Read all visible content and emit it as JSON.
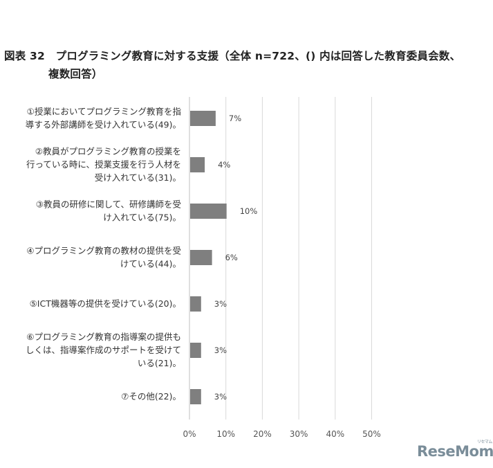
{
  "title_line1": "図表 32　プログラミング教育に対する支援（全体 n=722、() 内は回答した教育委員会数、",
  "title_line2": "複数回答）",
  "logo": {
    "text": "ReseMom",
    "kana": "リセマム"
  },
  "chart_data": {
    "type": "bar",
    "orientation": "horizontal",
    "categories": [
      [
        "①授業においてプログラミング教育を指",
        "導する外部講師を受け入れている(49)。"
      ],
      [
        "②教員がプログラミング教育の授業を",
        "行っている時に、授業支援を行う人材を",
        "受け入れている(31)。"
      ],
      [
        "③教員の研修に関して、研修講師を受",
        "け入れている(75)。"
      ],
      [
        "④プログラミング教育の教材の提供を受",
        "けている(44)。"
      ],
      [
        "⑤ICT機器等の提供を受けている(20)。"
      ],
      [
        "⑥プログラミング教育の指導案の提供も",
        "しくは、指導案作成のサポートを受けて",
        "いる(21)。"
      ],
      [
        "⑦その他(22)。"
      ]
    ],
    "values": [
      7,
      4,
      10,
      6,
      3,
      3,
      3
    ],
    "value_labels": [
      "7%",
      "4%",
      "10%",
      "6%",
      "3%",
      "3%",
      "3%"
    ],
    "xlim": [
      0,
      50
    ],
    "x_ticks": [
      0,
      10,
      20,
      30,
      40,
      50
    ],
    "x_tick_labels": [
      "0%",
      "10%",
      "20%",
      "30%",
      "40%",
      "50%"
    ],
    "grid": true,
    "bar_color": "#7f7f7f",
    "grid_color": "#d9d9d9",
    "axis_color": "#bfbfbf"
  }
}
